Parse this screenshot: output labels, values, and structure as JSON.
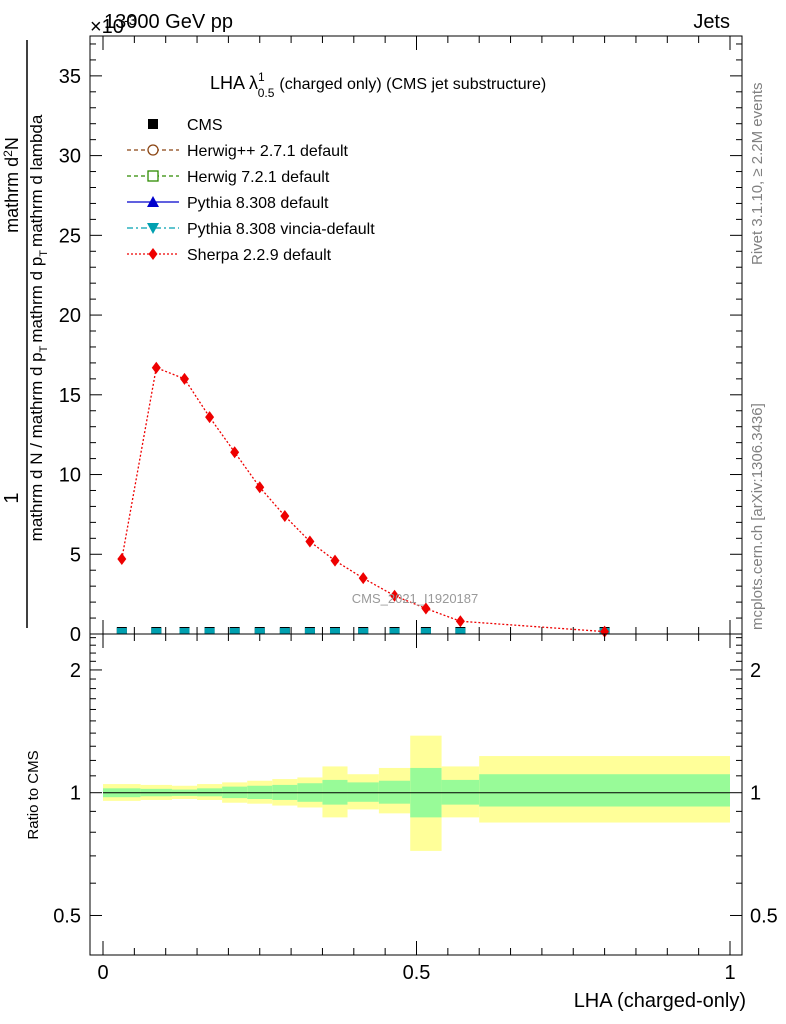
{
  "header": {
    "left": "13000 GeV pp",
    "right": "Jets",
    "exponent": "×10",
    "exponent_power": "-3"
  },
  "side_labels": {
    "rivet": "Rivet 3.1.10, ≥ 2.2M events",
    "mcplots": "mcplots.cern.ch [arXiv:1306.3436]"
  },
  "watermark": "CMS_2021_I1920187",
  "chart_data": [
    {
      "type": "line",
      "title": "LHA λ",
      "title_sup": "1",
      "title_sub": "0.5",
      "title_rest": "(charged only) (CMS jet substructure)",
      "ylabel_parts": [
        "mathrm d N / mathrm d p",
        "T",
        "mathrm d p",
        "T",
        "mathrm d lambda"
      ],
      "ylabel_numerator": "mathrm d",
      "ylabel_numerator_sup": "2",
      "ylabel_numerator_tail": "N",
      "ylabel_one": "1",
      "xlim": [
        0,
        1
      ],
      "ylim": [
        0,
        37.5
      ],
      "y_scale_exponent": -3,
      "y_ticks": [
        0,
        5,
        10,
        15,
        20,
        25,
        30,
        35
      ],
      "y_tick_labels": [
        "0",
        "5",
        "10",
        "15",
        "20",
        "25",
        "30",
        "35"
      ],
      "legend_position": "top-left",
      "legend": [
        {
          "name": "CMS",
          "color": "#000000",
          "marker": "square-filled",
          "line": "none"
        },
        {
          "name": "Herwig++ 2.7.1 default",
          "color": "#8b4513",
          "marker": "circle-open",
          "line": "dashed"
        },
        {
          "name": "Herwig 7.2.1 default",
          "color": "#2e8b00",
          "marker": "square-open",
          "line": "dashed"
        },
        {
          "name": "Pythia 8.308 default",
          "color": "#0000cc",
          "marker": "triangle-up",
          "line": "solid"
        },
        {
          "name": "Pythia 8.308 vincia-default",
          "color": "#00a0b0",
          "marker": "triangle-down",
          "line": "dashdot"
        },
        {
          "name": "Sherpa 2.2.9 default",
          "color": "#ee0000",
          "marker": "diamond",
          "line": "dotted"
        }
      ],
      "bins": [
        0.0,
        0.06,
        0.11,
        0.15,
        0.19,
        0.23,
        0.27,
        0.31,
        0.35,
        0.39,
        0.44,
        0.49,
        0.54,
        0.6,
        1.0
      ],
      "near_zero_markers_x": [
        0.03,
        0.085,
        0.13,
        0.17,
        0.21,
        0.25,
        0.29,
        0.33,
        0.37,
        0.415,
        0.465,
        0.515,
        0.57,
        0.8
      ],
      "series": [
        {
          "name": "Sherpa 2.2.9 default",
          "x": [
            0.03,
            0.085,
            0.13,
            0.17,
            0.21,
            0.25,
            0.29,
            0.33,
            0.37,
            0.415,
            0.465,
            0.515,
            0.57,
            0.8
          ],
          "y": [
            4.7,
            16.7,
            16.0,
            13.6,
            11.4,
            9.2,
            7.4,
            5.8,
            4.6,
            3.5,
            2.4,
            1.6,
            0.8,
            0.15
          ]
        }
      ]
    },
    {
      "type": "area",
      "ylabel": "Ratio to CMS",
      "xlabel": "LHA (charged-only)",
      "xlim": [
        0,
        1
      ],
      "ylim": [
        0.4,
        2.45
      ],
      "y_scale": "log",
      "x_ticks": [
        0,
        0.5,
        1
      ],
      "x_tick_labels": [
        "0",
        "0.5",
        "1"
      ],
      "y_ticks": [
        0.5,
        1,
        2
      ],
      "y_tick_labels": [
        "0.5",
        "1",
        "2"
      ],
      "band_colors": {
        "inner": "#98fb98",
        "outer": "#ffff99"
      },
      "bins": [
        0.0,
        0.06,
        0.11,
        0.15,
        0.19,
        0.23,
        0.27,
        0.31,
        0.35,
        0.39,
        0.44,
        0.49,
        0.54,
        0.6,
        1.0
      ],
      "outer_lo": [
        0.955,
        0.96,
        0.965,
        0.96,
        0.945,
        0.94,
        0.93,
        0.92,
        0.87,
        0.91,
        0.89,
        0.72,
        0.87,
        0.845
      ],
      "outer_hi": [
        1.05,
        1.045,
        1.04,
        1.05,
        1.06,
        1.07,
        1.08,
        1.09,
        1.16,
        1.11,
        1.15,
        1.38,
        1.16,
        1.23
      ],
      "inner_lo": [
        0.975,
        0.98,
        0.982,
        0.98,
        0.97,
        0.965,
        0.96,
        0.95,
        0.935,
        0.95,
        0.94,
        0.87,
        0.935,
        0.925
      ],
      "inner_hi": [
        1.025,
        1.022,
        1.018,
        1.025,
        1.035,
        1.04,
        1.045,
        1.055,
        1.075,
        1.06,
        1.07,
        1.15,
        1.075,
        1.11
      ],
      "reference_y": 1
    }
  ]
}
